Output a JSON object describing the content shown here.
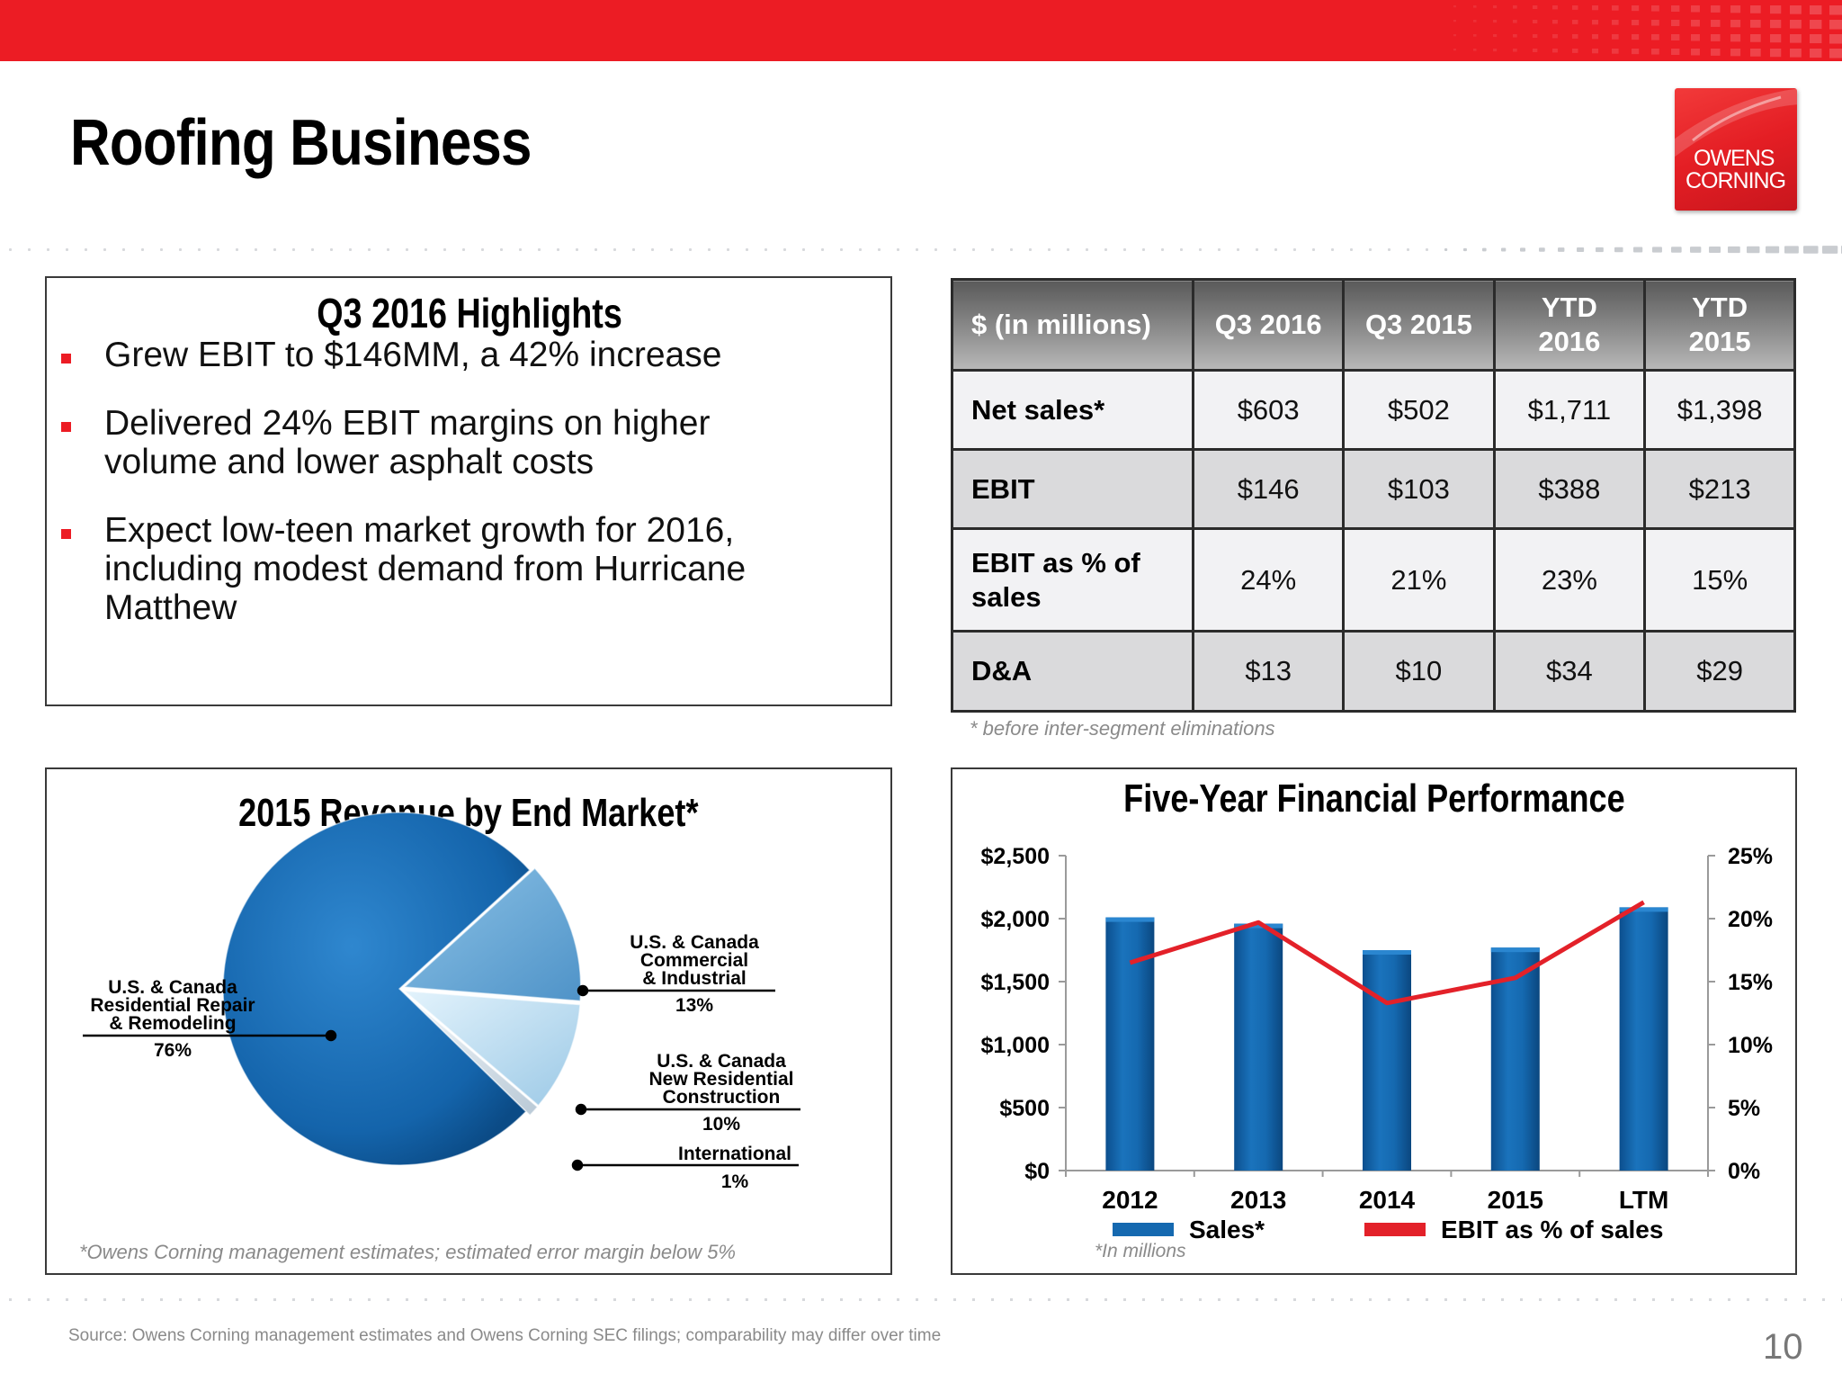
{
  "slide": {
    "title": "Roofing Business",
    "page_number": "10",
    "source": "Source: Owens Corning management estimates and Owens Corning SEC filings; comparability may differ over time"
  },
  "logo": {
    "line1": "OWENS",
    "line2": "CORNING"
  },
  "highlights": {
    "heading": "Q3 2016 Highlights",
    "bullets": [
      "Grew EBIT to $146MM, a 42% increase",
      "Delivered 24% EBIT margins on higher volume and lower asphalt costs",
      "Expect low-teen market growth for 2016, including modest demand from Hurricane Matthew"
    ]
  },
  "fin_table": {
    "headers": [
      "$ (in millions)",
      "Q3 2016",
      "Q3 2015",
      "YTD 2016",
      "YTD 2015"
    ],
    "rows": [
      [
        "Net sales*",
        "$603",
        "$502",
        "$1,711",
        "$1,398"
      ],
      [
        "EBIT",
        "$146",
        "$103",
        "$388",
        "$213"
      ],
      [
        "EBIT as % of sales",
        "24%",
        "21%",
        "23%",
        "15%"
      ],
      [
        "D&A",
        "$13",
        "$10",
        "$34",
        "$29"
      ]
    ],
    "footnote": "* before inter-segment eliminations"
  },
  "pie": {
    "title": "2015 Revenue by End Market*",
    "footnote": "*Owens Corning management estimates; estimated error margin below 5%",
    "labels": {
      "residential_repair": {
        "l1": "U.S. & Canada",
        "l2": "Residential Repair",
        "l3": "& Remodeling",
        "pct": "76%"
      },
      "commercial": {
        "l1": "U.S. & Canada",
        "l2": "Commercial",
        "l3": "& Industrial",
        "pct": "13%"
      },
      "new_residential": {
        "l1": "U.S. & Canada",
        "l2": "New Residential",
        "l3": "Construction",
        "pct": "10%"
      },
      "international": {
        "l1": "International",
        "pct": "1%"
      }
    }
  },
  "perf_chart": {
    "title": "Five-Year Financial Performance",
    "footnote": "*In millions"
  },
  "chart_data": [
    {
      "type": "pie",
      "title": "2015 Revenue by End Market*",
      "categories": [
        "U.S. & Canada Residential Repair & Remodeling",
        "U.S. & Canada Commercial & Industrial",
        "U.S. & Canada New Residential Construction",
        "International"
      ],
      "values": [
        76,
        13,
        10,
        1
      ],
      "colors": [
        "#1464ab",
        "#6ba9d6",
        "#bde0f4",
        "#e4eef5"
      ]
    },
    {
      "type": "bar",
      "title": "Five-Year Financial Performance",
      "categories": [
        "2012",
        "2013",
        "2014",
        "2015",
        "LTM"
      ],
      "y_ticks": [
        "$0",
        "$500",
        "$1,000",
        "$1,500",
        "$2,000",
        "$2,500"
      ],
      "y2_ticks": [
        "0%",
        "5%",
        "10%",
        "15%",
        "20%",
        "25%"
      ],
      "ylim": [
        0,
        2500
      ],
      "y2lim": [
        0,
        25
      ],
      "series": [
        {
          "name": "Sales*",
          "type": "bar",
          "color": "#1569b0",
          "values": [
            2010,
            1960,
            1750,
            1770,
            2090
          ]
        },
        {
          "name": "EBIT as % of sales",
          "type": "line",
          "axis": "right",
          "color": "#e32129",
          "values": [
            16.5,
            19.7,
            13.3,
            15.3,
            21.3
          ]
        }
      ]
    }
  ]
}
